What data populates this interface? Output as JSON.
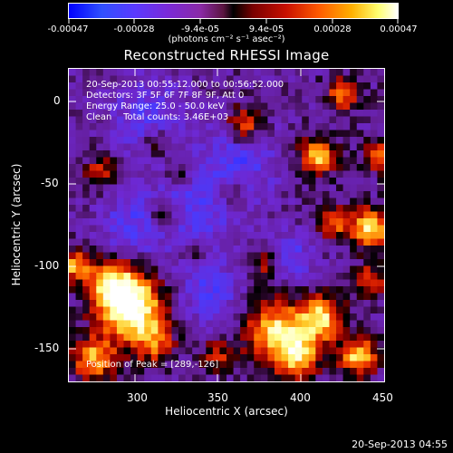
{
  "colorbar": {
    "tick_labels": [
      "-0.00047",
      "-0.00028",
      "-9.4e-05",
      "9.4e-05",
      "0.00028",
      "0.00047"
    ],
    "unit_label": "(photons cm⁻² s⁻¹ asec⁻²)",
    "range": [
      -0.00047,
      0.00047
    ]
  },
  "overlay": {
    "line1": "20-Sep-2013 00:55:12.000 to 00:56:52.000",
    "line2": "Detectors: 3F 5F 6F 7F 8F 9F, Att 0",
    "line3": "Energy Range: 25.0 - 50.0 keV",
    "line4": "Clean    Total counts: 3.46E+03",
    "peak": "Position of Peak = [289,-126]"
  },
  "timestamp": "20-Sep-2013 04:55",
  "chart_data": {
    "type": "heatmap",
    "title": "Reconstructed RHESSI Image",
    "xlabel": "Heliocentric X (arcsec)",
    "ylabel": "Heliocentric Y (arcsec)",
    "xlim": [
      260,
      450
    ],
    "ylim": [
      -172,
      17
    ],
    "x_ticks": [
      300,
      350,
      400,
      450
    ],
    "y_ticks": [
      0,
      -50,
      -100,
      -150
    ],
    "colormap": [
      "#0000ff",
      "#7a2ad8",
      "#000000",
      "#c81000",
      "#ffb000",
      "#ffffff"
    ],
    "peak_position": [
      289,
      -126
    ]
  }
}
